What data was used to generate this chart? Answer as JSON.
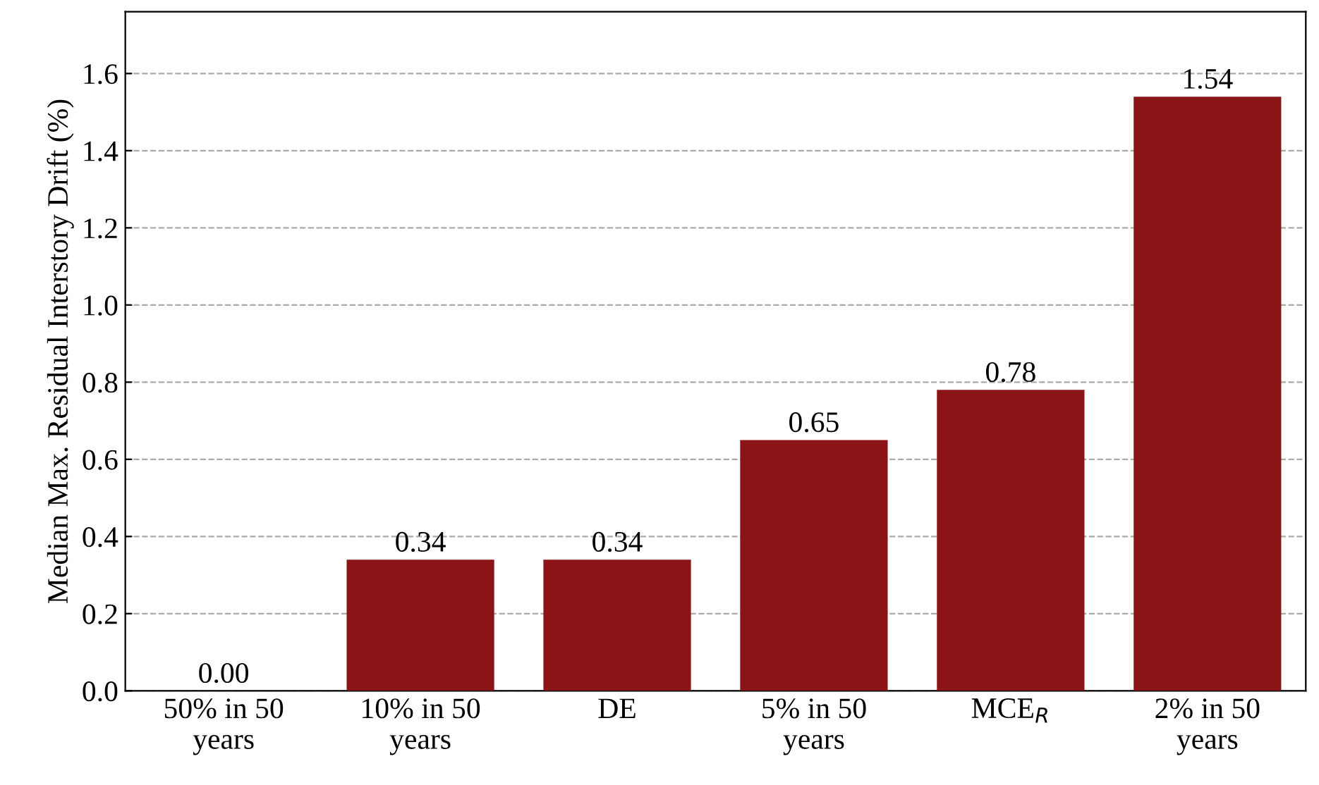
{
  "chart_data": {
    "type": "bar",
    "ylabel": "Median Max. Residual Interstory Drift (%)",
    "categories": [
      "50% in 50\nyears",
      "10% in 50\nyears",
      "DE",
      "5% in 50\nyears",
      "MCE$_{R}$",
      "2% in 50\nyears"
    ],
    "values": [
      0.0,
      0.34,
      0.34,
      0.65,
      0.78,
      1.54
    ],
    "color": "#8b1516",
    "ylim": [
      0,
      1.76
    ],
    "yticks": [
      {
        "value": 0,
        "label": "0.0"
      },
      {
        "value": 0.2,
        "label": "0.2"
      },
      {
        "value": 0.4,
        "label": "0.4"
      },
      {
        "value": 0.6,
        "label": "0.6"
      },
      {
        "value": 0.8,
        "label": "0.8"
      },
      {
        "value": 1.0,
        "label": "1.0"
      },
      {
        "value": 1.2,
        "label": "1.2"
      },
      {
        "value": 1.4,
        "label": "1.4"
      },
      {
        "value": 1.6,
        "label": "1.6"
      }
    ],
    "grid": "y",
    "value_labels": [
      "0.00",
      "0.34",
      "0.34",
      "0.65",
      "0.78",
      "1.54"
    ]
  }
}
